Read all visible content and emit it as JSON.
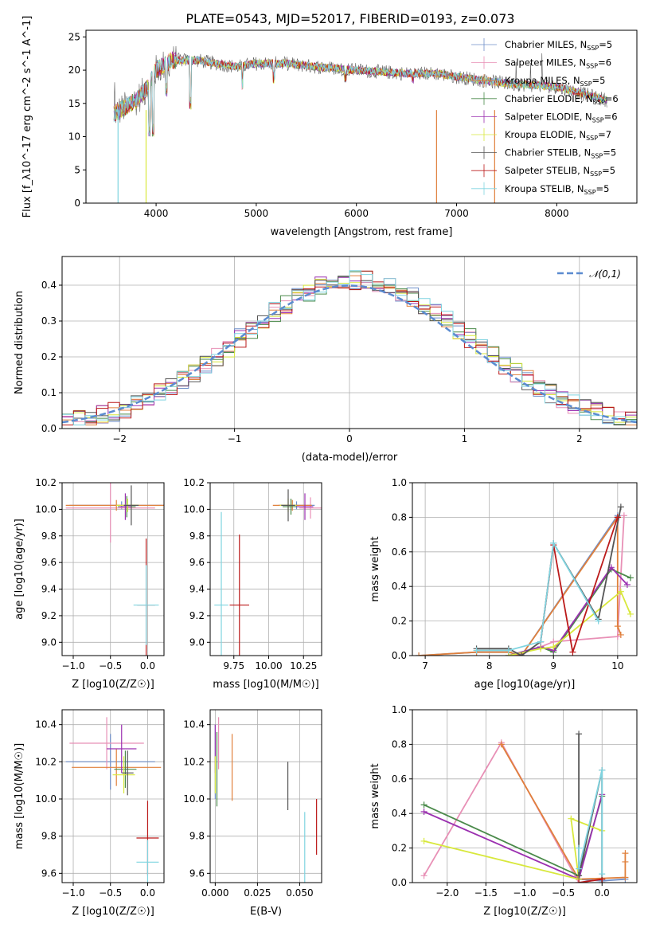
{
  "figure": {
    "title": "PLATE=0543, MJD=52017, FIBERID=0193, z=0.073",
    "models": [
      {
        "name": "Chabrier MILES",
        "nssp": "5",
        "color": "#6f8fc9"
      },
      {
        "name": "Salpeter MILES",
        "nssp": "6",
        "color": "#e890b6"
      },
      {
        "name": "Kroupa MILES",
        "nssp": "5",
        "color": "#e0803c"
      },
      {
        "name": "Chabrier ELODIE",
        "nssp": "6",
        "color": "#4a8a4a"
      },
      {
        "name": "Salpeter ELODIE",
        "nssp": "6",
        "color": "#9b30b0"
      },
      {
        "name": "Kroupa ELODIE",
        "nssp": "7",
        "color": "#d8e83c"
      },
      {
        "name": "Chabrier STELIB",
        "nssp": "5",
        "color": "#555555"
      },
      {
        "name": "Salpeter STELIB",
        "nssp": "5",
        "color": "#bb1a1a"
      },
      {
        "name": "Kroupa STELIB",
        "nssp": "5",
        "color": "#7fd4e0"
      }
    ]
  },
  "chart_data": [
    {
      "id": "spectrum",
      "type": "line",
      "xlabel": "wavelength [Angstrom, rest frame]",
      "ylabel": "Flux [f_λ10^-17 erg cm^-2 s^-1 A^-1]",
      "xlim": [
        3300,
        8800
      ],
      "ylim": [
        0,
        26
      ],
      "xticks": [
        4000,
        5000,
        6000,
        7000,
        8000
      ],
      "yticks": [
        0,
        5,
        10,
        15,
        20,
        25
      ],
      "grid": false,
      "legend": "upper right",
      "continuum": [
        [
          3580,
          13.5
        ],
        [
          3700,
          14.5
        ],
        [
          3800,
          15.5
        ],
        [
          3900,
          17
        ],
        [
          4000,
          20
        ],
        [
          4150,
          21.5
        ],
        [
          4400,
          21.5
        ],
        [
          4600,
          21
        ],
        [
          4800,
          20.5
        ],
        [
          5000,
          21
        ],
        [
          5300,
          21
        ],
        [
          5600,
          20.5
        ],
        [
          6000,
          20
        ],
        [
          6500,
          19.5
        ],
        [
          6800,
          19.5
        ],
        [
          7000,
          19
        ],
        [
          7500,
          18
        ],
        [
          8000,
          17.5
        ],
        [
          8500,
          15.5
        ]
      ],
      "absorption_features": [
        [
          3934,
          10
        ],
        [
          3969,
          10
        ],
        [
          4102,
          16
        ],
        [
          4340,
          14
        ],
        [
          4861,
          17
        ],
        [
          5175,
          18
        ],
        [
          5890,
          18
        ],
        [
          6563,
          18
        ]
      ],
      "spikes": [
        [
          3620,
          0
        ],
        [
          3900,
          0
        ],
        [
          6800,
          0
        ],
        [
          7380,
          0
        ]
      ]
    },
    {
      "id": "residuals",
      "type": "bar",
      "xlabel": "(data-model)/error",
      "ylabel": "Normed distribution",
      "xlim": [
        -2.5,
        2.5
      ],
      "ylim": [
        0,
        0.48
      ],
      "xticks": [
        -2,
        -1,
        0,
        1,
        2
      ],
      "yticks": [
        0.0,
        0.1,
        0.2,
        0.3,
        0.4
      ],
      "grid": true,
      "legend": "upper right",
      "reference_curve": {
        "name": "𝒩(0,1)",
        "color": "#5b8bd0"
      },
      "bin_width": 0.1
    },
    {
      "id": "age-vs-z",
      "type": "scatter",
      "xlabel": "Z [log10(Z/Z☉)]",
      "ylabel": "age  [log10(age/yr)]",
      "xlim": [
        -1.15,
        0.22
      ],
      "ylim": [
        8.9,
        10.2
      ],
      "xticks": [
        -1.0,
        -0.5,
        0.0
      ],
      "yticks": [
        9.0,
        9.2,
        9.4,
        9.6,
        9.8,
        10.0,
        10.2
      ],
      "grid": true,
      "points": [
        {
          "x": -0.35,
          "y": 10.03,
          "xerr": 0.7,
          "yerr": 0.03
        },
        {
          "x": -0.5,
          "y": 10.01,
          "xerr": 0.6,
          "yerr": 0.26
        },
        {
          "x": -0.42,
          "y": 10.03,
          "xerr": 0.68,
          "yerr": 0.04
        },
        {
          "x": -0.28,
          "y": 10.02,
          "xerr": 0.12,
          "yerr": 0.08
        },
        {
          "x": -0.3,
          "y": 10.02,
          "xerr": 0.08,
          "yerr": 0.1
        },
        {
          "x": -0.27,
          "y": 10.03,
          "xerr": 0.15,
          "yerr": 0.05
        },
        {
          "x": -0.22,
          "y": 10.03,
          "xerr": 0.1,
          "yerr": 0.15
        },
        {
          "x": -0.02,
          "y": 9.28,
          "xerr": 0.12,
          "yerr": 0.5
        },
        {
          "x": -0.02,
          "y": 9.28,
          "xerr": 0.17,
          "yerr": 0.3
        }
      ]
    },
    {
      "id": "age-vs-mass",
      "type": "scatter",
      "xlabel": "mass [log10(M/M☉)]",
      "ylabel": "",
      "xlim": [
        9.58,
        10.38
      ],
      "ylim": [
        8.9,
        10.2
      ],
      "xticks": [
        9.75,
        10.0,
        10.25
      ],
      "yticks": [
        9.0,
        9.2,
        9.4,
        9.6,
        9.8,
        10.0,
        10.2
      ],
      "grid": true,
      "points": [
        {
          "x": 10.2,
          "y": 10.03,
          "xerr": 0.13,
          "yerr": 0.03
        },
        {
          "x": 10.3,
          "y": 10.01,
          "xerr": 0.08,
          "yerr": 0.08
        },
        {
          "x": 10.17,
          "y": 10.03,
          "xerr": 0.14,
          "yerr": 0.04
        },
        {
          "x": 10.16,
          "y": 10.02,
          "xerr": 0.06,
          "yerr": 0.06
        },
        {
          "x": 10.26,
          "y": 10.02,
          "xerr": 0.06,
          "yerr": 0.1
        },
        {
          "x": 10.14,
          "y": 10.03,
          "xerr": 0.06,
          "yerr": 0.05
        },
        {
          "x": 10.14,
          "y": 10.03,
          "xerr": 0.05,
          "yerr": 0.12
        },
        {
          "x": 9.79,
          "y": 9.28,
          "xerr": 0.07,
          "yerr": 0.53
        },
        {
          "x": 9.66,
          "y": 9.28,
          "xerr": 0.05,
          "yerr": 0.7
        }
      ]
    },
    {
      "id": "mass-weight-vs-age",
      "type": "line",
      "xlabel": "age  [log10(age/yr)]",
      "ylabel": "mass weight",
      "xlim": [
        6.8,
        10.3
      ],
      "ylim": [
        0,
        1
      ],
      "xticks": [
        7,
        8,
        9,
        10
      ],
      "yticks": [
        0.0,
        0.2,
        0.4,
        0.6,
        0.8,
        1.0
      ],
      "grid": true,
      "series": [
        {
          "points": [
            [
              6.9,
              0.0
            ],
            [
              7.8,
              0.02
            ],
            [
              8.3,
              0.02
            ],
            [
              8.5,
              0.0
            ],
            [
              10.0,
              0.81
            ]
          ]
        },
        {
          "points": [
            [
              8.4,
              0.0
            ],
            [
              8.8,
              0.05
            ],
            [
              9.0,
              0.08
            ],
            [
              10.0,
              0.11
            ],
            [
              10.1,
              0.81
            ]
          ]
        },
        {
          "points": [
            [
              6.9,
              0.0
            ],
            [
              7.8,
              0.02
            ],
            [
              8.3,
              0.02
            ],
            [
              8.5,
              0.0
            ],
            [
              10.0,
              0.8
            ],
            [
              10.0,
              0.17
            ],
            [
              10.05,
              0.12
            ]
          ]
        },
        {
          "points": [
            [
              8.3,
              0.0
            ],
            [
              8.8,
              0.05
            ],
            [
              9.0,
              0.02
            ],
            [
              9.9,
              0.5
            ],
            [
              10.2,
              0.45
            ]
          ]
        },
        {
          "points": [
            [
              8.3,
              0.0
            ],
            [
              8.8,
              0.05
            ],
            [
              9.0,
              0.03
            ],
            [
              9.9,
              0.51
            ],
            [
              10.15,
              0.41
            ]
          ]
        },
        {
          "points": [
            [
              8.3,
              0.0
            ],
            [
              8.8,
              0.04
            ],
            [
              9.0,
              0.05
            ],
            [
              10.05,
              0.37
            ],
            [
              10.2,
              0.24
            ]
          ]
        },
        {
          "points": [
            [
              7.8,
              0.04
            ],
            [
              8.3,
              0.04
            ],
            [
              8.5,
              0.0
            ],
            [
              8.8,
              0.08
            ],
            [
              9.0,
              0.65
            ],
            [
              9.7,
              0.21
            ],
            [
              10.05,
              0.86
            ]
          ]
        },
        {
          "points": [
            [
              8.8,
              0.08
            ],
            [
              9.0,
              0.64
            ],
            [
              9.3,
              0.02
            ],
            [
              10.0,
              0.8
            ]
          ]
        },
        {
          "points": [
            [
              7.8,
              0.03
            ],
            [
              8.3,
              0.03
            ],
            [
              8.8,
              0.08
            ],
            [
              9.0,
              0.65
            ],
            [
              9.7,
              0.2
            ]
          ]
        }
      ]
    },
    {
      "id": "mass-vs-z",
      "type": "scatter",
      "xlabel": "Z [log10(Z/Z☉)]",
      "ylabel": "mass [log10(M/M☉)]",
      "xlim": [
        -1.15,
        0.22
      ],
      "ylim": [
        9.55,
        10.48
      ],
      "xticks": [
        -1.0,
        -0.5,
        0.0
      ],
      "yticks": [
        9.6,
        9.8,
        10.0,
        10.2,
        10.4
      ],
      "grid": true,
      "points": [
        {
          "x": -0.5,
          "y": 10.2,
          "xerr": 0.6,
          "yerr": 0.15
        },
        {
          "x": -0.55,
          "y": 10.3,
          "xerr": 0.5,
          "yerr": 0.14
        },
        {
          "x": -0.42,
          "y": 10.17,
          "xerr": 0.6,
          "yerr": 0.1
        },
        {
          "x": -0.3,
          "y": 10.16,
          "xerr": 0.15,
          "yerr": 0.1
        },
        {
          "x": -0.35,
          "y": 10.27,
          "xerr": 0.2,
          "yerr": 0.13
        },
        {
          "x": -0.32,
          "y": 10.13,
          "xerr": 0.15,
          "yerr": 0.1
        },
        {
          "x": -0.27,
          "y": 10.14,
          "xerr": 0.08,
          "yerr": 0.12
        },
        {
          "x": 0.0,
          "y": 9.79,
          "xerr": 0.15,
          "yerr": 0.2
        },
        {
          "x": 0.0,
          "y": 9.66,
          "xerr": 0.15,
          "yerr": 0.12
        }
      ]
    },
    {
      "id": "mass-vs-ebv",
      "type": "scatter",
      "xlabel": "E(B-V)",
      "ylabel": "",
      "xlim": [
        -0.003,
        0.063
      ],
      "ylim": [
        9.55,
        10.48
      ],
      "xticks": [
        0.0,
        0.025,
        0.05
      ],
      "yticks": [
        9.6,
        9.8,
        10.0,
        10.2,
        10.4
      ],
      "grid": true,
      "points": [
        {
          "x": 0.0,
          "y": 10.2,
          "xerr": 0,
          "yerr": 0.2
        },
        {
          "x": 0.002,
          "y": 10.3,
          "xerr": 0,
          "yerr": 0.14
        },
        {
          "x": 0.01,
          "y": 10.17,
          "xerr": 0,
          "yerr": 0.18
        },
        {
          "x": 0.001,
          "y": 10.16,
          "xerr": 0,
          "yerr": 0.2
        },
        {
          "x": 0.0,
          "y": 10.27,
          "xerr": 0,
          "yerr": 0.13
        },
        {
          "x": 0.0,
          "y": 10.13,
          "xerr": 0,
          "yerr": 0.1
        },
        {
          "x": 0.043,
          "y": 10.07,
          "xerr": 0,
          "yerr": 0.13
        },
        {
          "x": 0.06,
          "y": 9.85,
          "xerr": 0,
          "yerr": 0.15
        },
        {
          "x": 0.053,
          "y": 9.73,
          "xerr": 0,
          "yerr": 0.2
        }
      ]
    },
    {
      "id": "mass-weight-vs-z",
      "type": "line",
      "xlabel": "Z [log10(Z/Z☉)]",
      "ylabel": "mass weight",
      "xlim": [
        -2.45,
        0.45
      ],
      "ylim": [
        0,
        1
      ],
      "xticks": [
        -2.0,
        -1.5,
        -1.0,
        -0.5,
        0.0
      ],
      "yticks": [
        0.0,
        0.2,
        0.4,
        0.6,
        0.8,
        1.0
      ],
      "grid": true,
      "series": [
        {
          "points": [
            [
              -0.3,
              0.02
            ],
            [
              0.0,
              0.01
            ],
            [
              0.3,
              0.02
            ]
          ]
        },
        {
          "points": [
            [
              -2.3,
              0.04
            ],
            [
              -1.3,
              0.81
            ],
            [
              -0.3,
              0.0
            ],
            [
              0.0,
              0.02
            ]
          ]
        },
        {
          "points": [
            [
              -1.3,
              0.8
            ],
            [
              -0.3,
              0.02
            ],
            [
              0.3,
              0.03
            ],
            [
              0.3,
              0.17
            ],
            [
              0.3,
              0.12
            ]
          ]
        },
        {
          "points": [
            [
              -2.3,
              0.45
            ],
            [
              -0.3,
              0.04
            ],
            [
              0.0,
              0.5
            ]
          ]
        },
        {
          "points": [
            [
              -2.3,
              0.41
            ],
            [
              -0.3,
              0.02
            ],
            [
              0.0,
              0.51
            ]
          ]
        },
        {
          "points": [
            [
              -2.3,
              0.24
            ],
            [
              -0.3,
              0.02
            ],
            [
              -0.4,
              0.37
            ],
            [
              0.0,
              0.3
            ]
          ]
        },
        {
          "points": [
            [
              -0.3,
              0.86
            ],
            [
              -0.3,
              0.04
            ],
            [
              0.0,
              0.65
            ],
            [
              0.0,
              0.0
            ]
          ]
        },
        {
          "points": [
            [
              -0.3,
              0.0
            ],
            [
              0.0,
              0.02
            ]
          ]
        },
        {
          "points": [
            [
              -0.3,
              0.2
            ],
            [
              -0.3,
              0.08
            ],
            [
              0.0,
              0.65
            ],
            [
              0.0,
              0.05
            ]
          ]
        }
      ]
    }
  ]
}
